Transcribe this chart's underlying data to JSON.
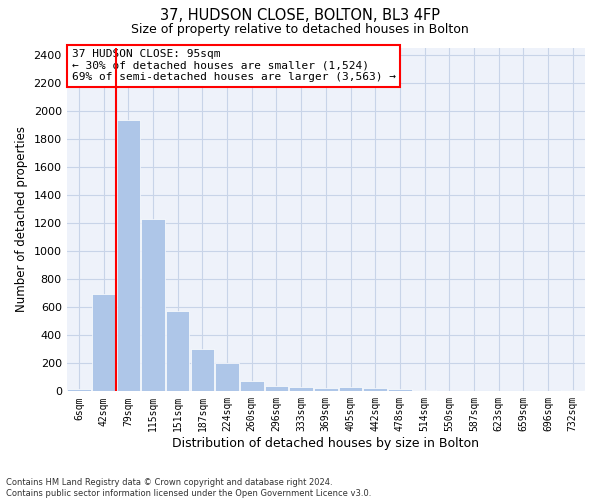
{
  "title": "37, HUDSON CLOSE, BOLTON, BL3 4FP",
  "subtitle": "Size of property relative to detached houses in Bolton",
  "xlabel": "Distribution of detached houses by size in Bolton",
  "ylabel": "Number of detached properties",
  "footnote": "Contains HM Land Registry data © Crown copyright and database right 2024.\nContains public sector information licensed under the Open Government Licence v3.0.",
  "bar_labels": [
    "6sqm",
    "42sqm",
    "79sqm",
    "115sqm",
    "151sqm",
    "187sqm",
    "224sqm",
    "260sqm",
    "296sqm",
    "333sqm",
    "369sqm",
    "405sqm",
    "442sqm",
    "478sqm",
    "514sqm",
    "550sqm",
    "587sqm",
    "623sqm",
    "659sqm",
    "696sqm",
    "732sqm"
  ],
  "bar_values": [
    15,
    690,
    1930,
    1230,
    570,
    300,
    200,
    75,
    40,
    30,
    25,
    30,
    25,
    15,
    8,
    0,
    5,
    0,
    0,
    0,
    10
  ],
  "bar_color": "#aec6e8",
  "grid_color": "#c8d4e8",
  "background_color": "#eef2fa",
  "vline_color": "red",
  "vline_x_index": 2,
  "annotation_box_text": "37 HUDSON CLOSE: 95sqm\n← 30% of detached houses are smaller (1,524)\n69% of semi-detached houses are larger (3,563) →",
  "ylim": [
    0,
    2450
  ],
  "yticks": [
    0,
    200,
    400,
    600,
    800,
    1000,
    1200,
    1400,
    1600,
    1800,
    2000,
    2200,
    2400
  ]
}
